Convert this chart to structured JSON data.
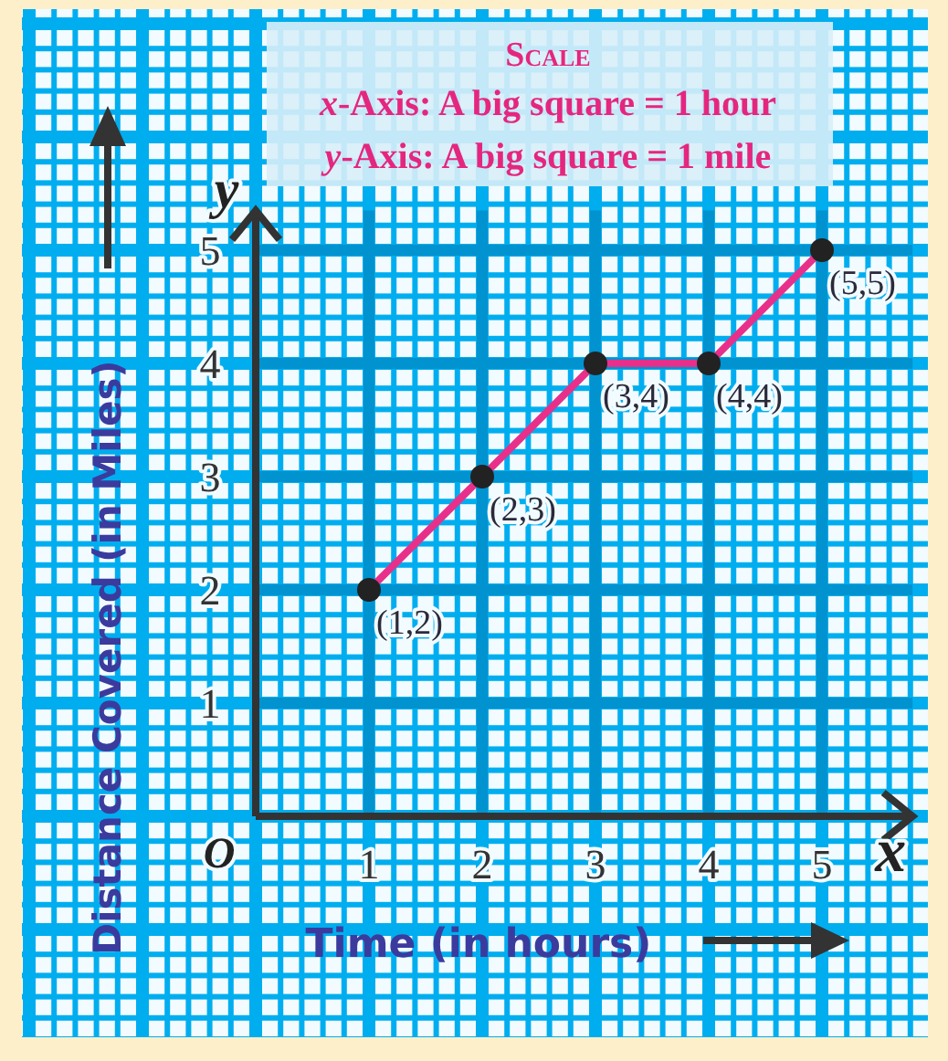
{
  "chart_data": {
    "type": "line",
    "xlabel": "Time (in hours)",
    "ylabel": "Distance Covered (in Miles)",
    "x": [
      1,
      2,
      3,
      4,
      5
    ],
    "series": [
      {
        "color": "#e8308a",
        "values": [
          2,
          3,
          4,
          4,
          5
        ]
      }
    ],
    "xlim": [
      0,
      5.8
    ],
    "ylim": [
      0,
      5.35
    ],
    "xticks": [
      1,
      2,
      3,
      4,
      5
    ],
    "yticks": [
      1,
      2,
      3,
      4,
      5
    ],
    "grid": true,
    "marker": "circle",
    "line_style": "solid",
    "annotations": [
      "Scale",
      "x-Axis: A big square = 1 hour",
      "y-Axis: A big square = 1 mile",
      "O",
      "x",
      "y",
      {
        "text": "(1,2)",
        "x": 1,
        "y": 2
      },
      {
        "text": "(2,3)",
        "x": 2,
        "y": 3
      },
      {
        "text": "(3,4)",
        "x": 3,
        "y": 4
      },
      {
        "text": "(4,4)",
        "x": 4,
        "y": 4
      },
      {
        "text": "(5,5)",
        "x": 5,
        "y": 5
      }
    ]
  }
}
